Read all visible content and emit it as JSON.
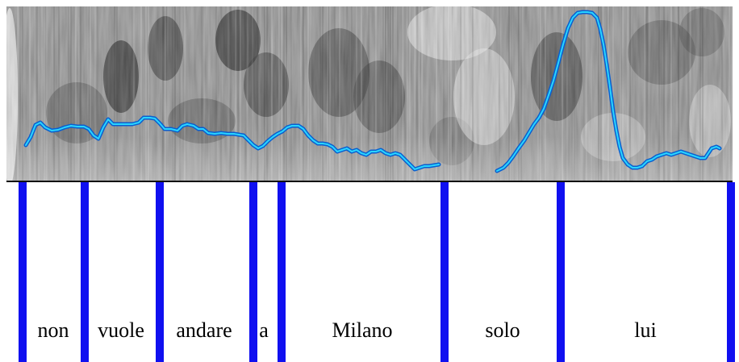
{
  "words": [
    {
      "text": "non"
    },
    {
      "text": "vuole"
    },
    {
      "text": "andare"
    },
    {
      "text": "a"
    },
    {
      "text": "Milano"
    },
    {
      "text": "solo"
    },
    {
      "text": "lui"
    }
  ],
  "colors": {
    "boundary": "#1010f0",
    "pitch_outer": "#0a5fcf",
    "pitch_inner": "#2ad4ff",
    "spectrogram_dark": "#1a1a1a",
    "spectrogram_light": "#f4f4f4",
    "baseline": "#111111"
  },
  "icons": []
}
